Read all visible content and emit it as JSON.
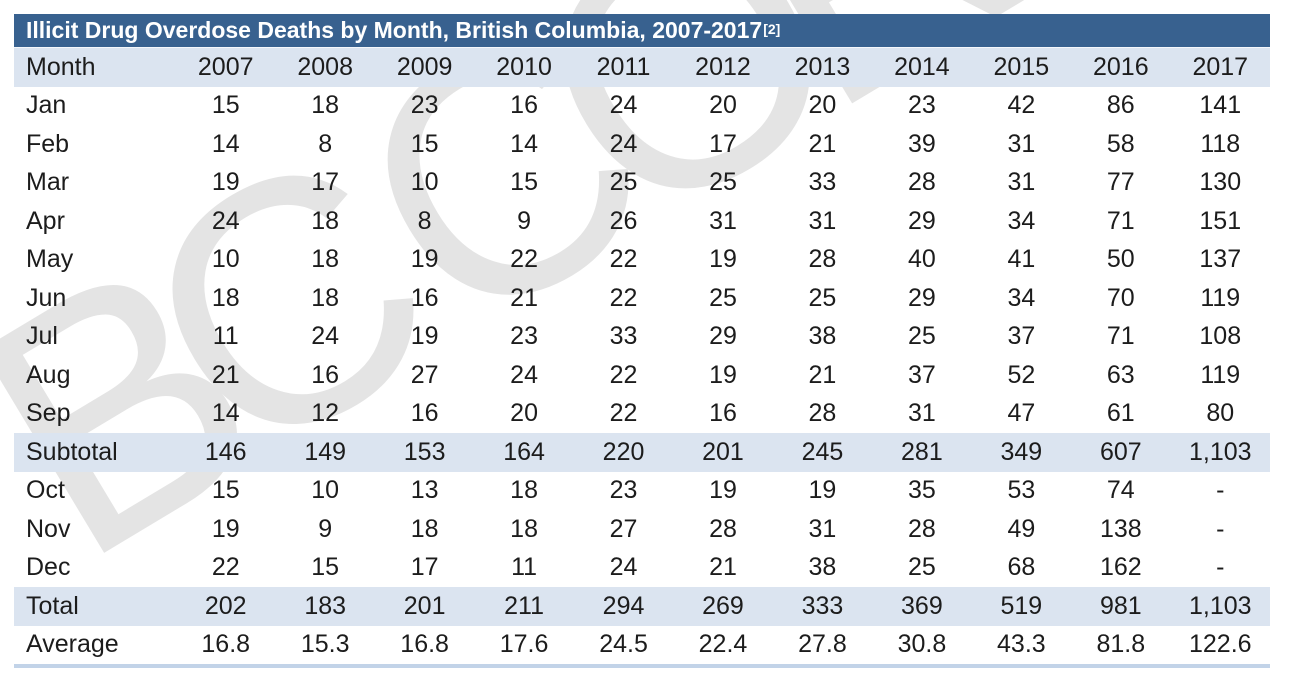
{
  "title": {
    "text": "Illicit Drug Overdose Deaths by Month, British Columbia, 2007-2017",
    "footnote_ref": "[2]"
  },
  "watermark": {
    "text": "BC CORONERS"
  },
  "colors": {
    "title_bar_blue": "#38618f",
    "band_light_blue": "#dbe4f0",
    "bottom_rule_blue": "#c2d3e8",
    "watermark_gray": "#e4e4e4",
    "title_text": "#ffffff",
    "body_text": "#1c1c1c"
  },
  "chart_data": {
    "type": "table",
    "title": "Illicit Drug Overdose Deaths by Month, British Columbia, 2007-2017[2]",
    "columns": [
      "Month",
      "2007",
      "2008",
      "2009",
      "2010",
      "2011",
      "2012",
      "2013",
      "2014",
      "2015",
      "2016",
      "2017"
    ],
    "rows": [
      {
        "label": "Jan",
        "band": false,
        "values": [
          "15",
          "18",
          "23",
          "16",
          "24",
          "20",
          "20",
          "23",
          "42",
          "86",
          "141"
        ]
      },
      {
        "label": "Feb",
        "band": false,
        "values": [
          "14",
          "8",
          "15",
          "14",
          "24",
          "17",
          "21",
          "39",
          "31",
          "58",
          "118"
        ]
      },
      {
        "label": "Mar",
        "band": false,
        "values": [
          "19",
          "17",
          "10",
          "15",
          "25",
          "25",
          "33",
          "28",
          "31",
          "77",
          "130"
        ]
      },
      {
        "label": "Apr",
        "band": false,
        "values": [
          "24",
          "18",
          "8",
          "9",
          "26",
          "31",
          "31",
          "29",
          "34",
          "71",
          "151"
        ]
      },
      {
        "label": "May",
        "band": false,
        "values": [
          "10",
          "18",
          "19",
          "22",
          "22",
          "19",
          "28",
          "40",
          "41",
          "50",
          "137"
        ]
      },
      {
        "label": "Jun",
        "band": false,
        "values": [
          "18",
          "18",
          "16",
          "21",
          "22",
          "25",
          "25",
          "29",
          "34",
          "70",
          "119"
        ]
      },
      {
        "label": "Jul",
        "band": false,
        "values": [
          "11",
          "24",
          "19",
          "23",
          "33",
          "29",
          "38",
          "25",
          "37",
          "71",
          "108"
        ]
      },
      {
        "label": "Aug",
        "band": false,
        "values": [
          "21",
          "16",
          "27",
          "24",
          "22",
          "19",
          "21",
          "37",
          "52",
          "63",
          "119"
        ]
      },
      {
        "label": "Sep",
        "band": false,
        "values": [
          "14",
          "12",
          "16",
          "20",
          "22",
          "16",
          "28",
          "31",
          "47",
          "61",
          "80"
        ]
      },
      {
        "label": "Subtotal",
        "band": true,
        "values": [
          "146",
          "149",
          "153",
          "164",
          "220",
          "201",
          "245",
          "281",
          "349",
          "607",
          "1,103"
        ]
      },
      {
        "label": "Oct",
        "band": false,
        "values": [
          "15",
          "10",
          "13",
          "18",
          "23",
          "19",
          "19",
          "35",
          "53",
          "74",
          "-"
        ]
      },
      {
        "label": "Nov",
        "band": false,
        "values": [
          "19",
          "9",
          "18",
          "18",
          "27",
          "28",
          "31",
          "28",
          "49",
          "138",
          "-"
        ]
      },
      {
        "label": "Dec",
        "band": false,
        "values": [
          "22",
          "15",
          "17",
          "11",
          "24",
          "21",
          "38",
          "25",
          "68",
          "162",
          "-"
        ]
      },
      {
        "label": "Total",
        "band": true,
        "values": [
          "202",
          "183",
          "201",
          "211",
          "294",
          "269",
          "333",
          "369",
          "519",
          "981",
          "1,103"
        ]
      },
      {
        "label": "Average",
        "band": false,
        "values": [
          "16.8",
          "15.3",
          "16.8",
          "17.6",
          "24.5",
          "22.4",
          "27.8",
          "30.8",
          "43.3",
          "81.8",
          "122.6"
        ]
      }
    ]
  }
}
